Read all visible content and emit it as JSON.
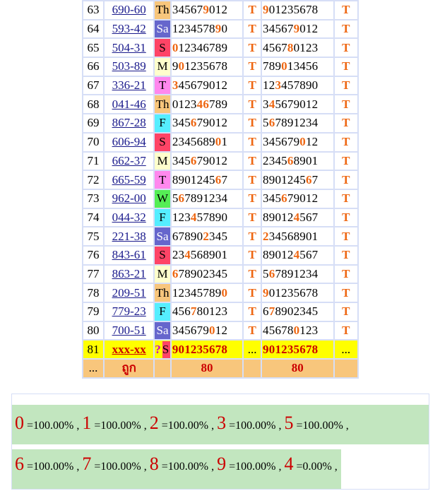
{
  "rows": [
    {
      "n": "63",
      "code": "690-60",
      "day": "Th",
      "dayColor": "#f8c67c",
      "seq": "345679012",
      "hl1": [
        5
      ],
      "t1": "T",
      "seq2": "901235678",
      "hl2": [
        0
      ],
      "t2": "T"
    },
    {
      "n": "64",
      "code": "593-42",
      "day": "Sa",
      "dayColor": "#6666cc",
      "dayText": "#ffffff",
      "seq": "123457890",
      "hl1": [
        7
      ],
      "t1": "T",
      "seq2": "345679012",
      "hl2": [
        5
      ],
      "t2": "T"
    },
    {
      "n": "65",
      "code": "504-31",
      "day": "S",
      "dayColor": "#ff4466",
      "seq": "012346789",
      "hl1": [
        0
      ],
      "t1": "T",
      "seq2": "456780123",
      "hl2": [
        4
      ],
      "t2": "T"
    },
    {
      "n": "66",
      "code": "503-89",
      "day": "M",
      "dayColor": "#ffffcc",
      "seq": "901235678",
      "hl1": [
        1
      ],
      "t1": "T",
      "seq2": "789013456",
      "hl2": [
        3
      ],
      "t2": "T"
    },
    {
      "n": "67",
      "code": "336-21",
      "day": "T",
      "dayColor": "#ff88ee",
      "seq": "345679012",
      "hl1": [
        0
      ],
      "t1": "T",
      "seq2": "123457890",
      "hl2": [
        2
      ],
      "t2": "T"
    },
    {
      "n": "68",
      "code": "041-46",
      "day": "Th",
      "dayColor": "#f8c67c",
      "seq": "012346789",
      "hl1": [
        4,
        5
      ],
      "t1": "T",
      "seq2": "345679012",
      "hl2": [
        1
      ],
      "t2": "T"
    },
    {
      "n": "69",
      "code": "867-28",
      "day": "F",
      "dayColor": "#55eeff",
      "seq": "345679012",
      "hl1": [
        3
      ],
      "t1": "T",
      "seq2": "567891234",
      "hl2": [
        1
      ],
      "t2": "T"
    },
    {
      "n": "70",
      "code": "606-94",
      "day": "S",
      "dayColor": "#ff4466",
      "seq": "234568901",
      "hl1": [
        7
      ],
      "t1": "T",
      "seq2": "345679012",
      "hl2": [
        6
      ],
      "t2": "T"
    },
    {
      "n": "71",
      "code": "662-37",
      "day": "M",
      "dayColor": "#ffffcc",
      "seq": "345679012",
      "hl1": [
        3
      ],
      "t1": "T",
      "seq2": "234568901",
      "hl2": [
        4
      ],
      "t2": "T"
    },
    {
      "n": "72",
      "code": "665-59",
      "day": "T",
      "dayColor": "#ff88ee",
      "seq": "890124567",
      "hl1": [
        7
      ],
      "t1": "T",
      "seq2": "890124567",
      "hl2": [
        7
      ],
      "t2": "T"
    },
    {
      "n": "73",
      "code": "962-00",
      "day": "W",
      "dayColor": "#55ee55",
      "seq": "567891234",
      "hl1": [
        1
      ],
      "t1": "T",
      "seq2": "345679012",
      "hl2": [
        3
      ],
      "t2": "T"
    },
    {
      "n": "74",
      "code": "044-32",
      "day": "F",
      "dayColor": "#55eeff",
      "seq": "123457890",
      "hl1": [
        3
      ],
      "t1": "T",
      "seq2": "890124567",
      "hl2": [
        5
      ],
      "t2": "T"
    },
    {
      "n": "75",
      "code": "221-38",
      "day": "Sa",
      "dayColor": "#6666cc",
      "dayText": "#ffffff",
      "seq": "678902345",
      "hl1": [
        5
      ],
      "t1": "T",
      "seq2": "234568901",
      "hl2": [
        0
      ],
      "t2": "T"
    },
    {
      "n": "76",
      "code": "843-61",
      "day": "S",
      "dayColor": "#ff4466",
      "seq": "234568901",
      "hl1": [
        2
      ],
      "t1": "T",
      "seq2": "890124567",
      "hl2": [
        5
      ],
      "t2": "T"
    },
    {
      "n": "77",
      "code": "863-21",
      "day": "M",
      "dayColor": "#ffffcc",
      "seq": "678902345",
      "hl1": [
        0
      ],
      "t1": "T",
      "seq2": "567891234",
      "hl2": [
        1
      ],
      "t2": "T"
    },
    {
      "n": "78",
      "code": "209-51",
      "day": "Th",
      "dayColor": "#f8c67c",
      "seq": "123457890",
      "hl1": [
        8
      ],
      "t1": "T",
      "seq2": "901235678",
      "hl2": [
        0
      ],
      "t2": "T"
    },
    {
      "n": "79",
      "code": "779-23",
      "day": "F",
      "dayColor": "#55eeff",
      "seq": "456780123",
      "hl1": [
        3
      ],
      "t1": "T",
      "seq2": "678902345",
      "hl2": [
        1
      ],
      "t2": "T"
    },
    {
      "n": "80",
      "code": "700-51",
      "day": "Sa",
      "dayColor": "#6666cc",
      "dayText": "#ffffff",
      "seq": "345679012",
      "hl1": [
        6
      ],
      "t1": "T",
      "seq2": "456780123",
      "hl2": [
        5
      ],
      "t2": "T"
    }
  ],
  "row81": {
    "n": "81",
    "code": "xxx-xx",
    "q": "?",
    "day": "S",
    "dayColor": "#ff4466",
    "seq": "901235678",
    "mid": "...",
    "seq2": "901235678",
    "end": "..."
  },
  "summary": {
    "dots": "...",
    "label": "ถูก",
    "v1": "80",
    "v2": "80"
  },
  "stats": {
    "line1": [
      {
        "d": "0",
        "p": "=100.00%"
      },
      {
        "d": "1",
        "p": "=100.00%"
      },
      {
        "d": "2",
        "p": "=100.00%"
      },
      {
        "d": "3",
        "p": "=100.00%"
      },
      {
        "d": "5",
        "p": "=100.00%"
      }
    ],
    "line2": [
      {
        "d": "6",
        "p": "=100.00%"
      },
      {
        "d": "7",
        "p": "=100.00%"
      },
      {
        "d": "8",
        "p": "=100.00%"
      },
      {
        "d": "9",
        "p": "=100.00%"
      },
      {
        "d": "4",
        "p": "=0.00%"
      }
    ],
    "sep": " , "
  }
}
